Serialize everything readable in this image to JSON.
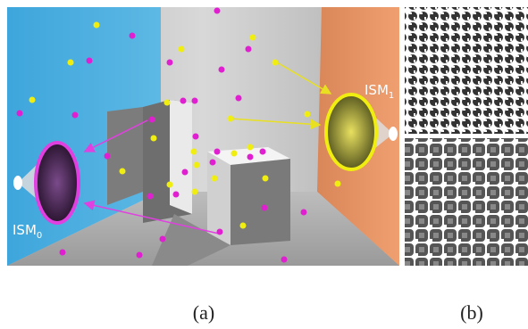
{
  "figure": {
    "ism_right": {
      "text": "ISM",
      "sub": "1"
    },
    "ism_left": {
      "text": "ISM",
      "sub": "0"
    },
    "caption_a": "(a)",
    "caption_b": "(b)"
  }
}
